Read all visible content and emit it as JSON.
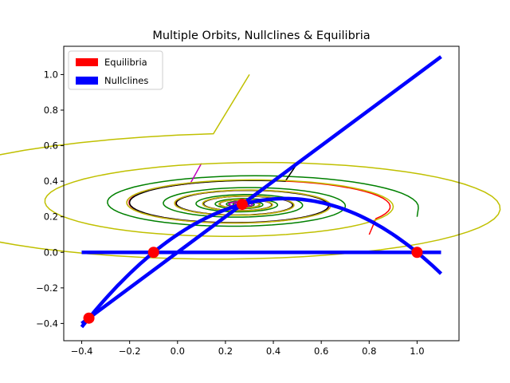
{
  "chart_data": {
    "type": "line",
    "title": "Multiple Orbits, Nullclines & Equilibria",
    "xlabel": "",
    "ylabel": "",
    "xlim": [
      -0.475,
      1.175
    ],
    "ylim": [
      -0.497,
      1.159
    ],
    "xticks": [
      -0.4,
      -0.2,
      0.0,
      0.2,
      0.4,
      0.6,
      0.8,
      1.0
    ],
    "xtick_labels": [
      "−0.4",
      "−0.2",
      "0.0",
      "0.2",
      "0.4",
      "0.6",
      "0.8",
      "1.0"
    ],
    "yticks": [
      -0.4,
      -0.2,
      0.0,
      0.2,
      0.4,
      0.6,
      0.8,
      1.0
    ],
    "ytick_labels": [
      "−0.4",
      "−0.2",
      "0.0",
      "0.2",
      "0.4",
      "0.6",
      "0.8",
      "1.0"
    ],
    "grid": false,
    "legend": {
      "placement": "upper-left",
      "entries": [
        {
          "label": "Equilibria",
          "color": "#ff0000"
        },
        {
          "label": "Nullclines",
          "color": "#0000ff"
        }
      ]
    },
    "nullclines": [
      {
        "kind": "line",
        "color": "#0000ff",
        "points": [
          [
            -0.4,
            -0.4
          ],
          [
            1.1,
            1.1
          ]
        ]
      },
      {
        "kind": "horizontal",
        "color": "#0000ff",
        "points": [
          [
            -0.4,
            0.0
          ],
          [
            1.1,
            0.0
          ]
        ]
      },
      {
        "kind": "parabola",
        "color": "#0000ff",
        "formula": "y = 1.1*x*(1-x) + 0.1*(1-x) ... fitted: y = -(x+0.1)(x-1)",
        "x_range": [
          -0.4,
          1.1
        ]
      }
    ],
    "equilibria": [
      [
        -0.37,
        -0.37
      ],
      [
        -0.1,
        0.0
      ],
      [
        0.27,
        0.27
      ],
      [
        1.0,
        0.0
      ]
    ],
    "orbits": [
      {
        "color": "#ff0000",
        "start": [
          0.8,
          0.1
        ]
      },
      {
        "color": "#008000",
        "start": [
          1.0,
          0.2
        ]
      },
      {
        "color": "#000000",
        "start": [
          0.5,
          0.5
        ]
      },
      {
        "color": "#c000c0",
        "start": [
          0.1,
          0.5
        ]
      },
      {
        "color": "#c0c000",
        "start": [
          0.3,
          1.0
        ]
      }
    ],
    "equilibrium_color": "#ff0000",
    "nullcline_color": "#0000ff"
  }
}
